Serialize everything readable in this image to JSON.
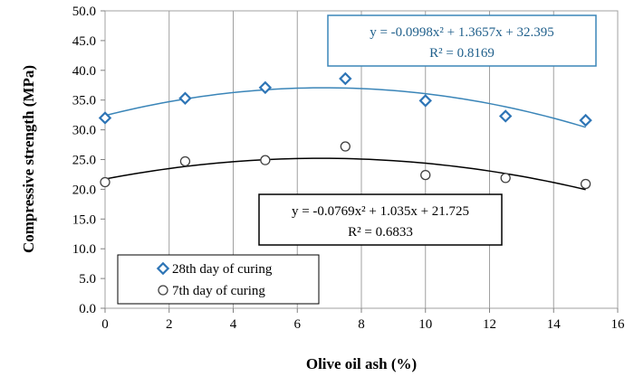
{
  "chart_data": {
    "type": "scatter",
    "xlabel": "Olive oil ash  (%)",
    "ylabel": "Compressive strength (MPa)",
    "xlim": [
      0,
      16
    ],
    "ylim": [
      0,
      50
    ],
    "x_ticks": [
      "0",
      "2",
      "4",
      "6",
      "8",
      "10",
      "12",
      "14",
      "16"
    ],
    "y_ticks": [
      "0.0",
      "5.0",
      "10.0",
      "15.0",
      "20.0",
      "25.0",
      "30.0",
      "35.0",
      "40.0",
      "45.0",
      "50.0"
    ],
    "grid": "vertical",
    "legend_position": "bottom-left",
    "series": [
      {
        "name": "28th day of curing",
        "marker": "diamond",
        "color": "#2e75b6",
        "trend_color": "#3a85b8",
        "x": [
          0,
          2.5,
          5,
          7.5,
          10,
          12.5,
          15
        ],
        "y": [
          32.0,
          35.3,
          37.1,
          38.6,
          34.9,
          32.3,
          31.6
        ],
        "trendline": {
          "a": -0.0998,
          "b": 1.3657,
          "c": 32.395
        },
        "equation_line1": "y = -0.0998x² + 1.3657x + 32.395",
        "equation_line2": "R² = 0.8169"
      },
      {
        "name": "7th day of curing",
        "marker": "circle",
        "color": "#404040",
        "trend_color": "#000000",
        "x": [
          0,
          2.5,
          5,
          7.5,
          10,
          12.5,
          15
        ],
        "y": [
          21.2,
          24.7,
          24.9,
          27.2,
          22.4,
          21.9,
          20.9
        ],
        "trendline": {
          "a": -0.0769,
          "b": 1.035,
          "c": 21.725
        },
        "equation_line1": "y = -0.0769x² + 1.035x + 21.725",
        "equation_line2": "R² = 0.6833"
      }
    ]
  }
}
